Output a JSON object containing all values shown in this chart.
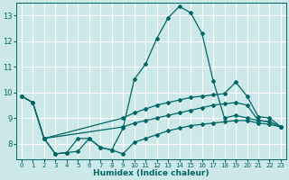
{
  "title": "",
  "xlabel": "Humidex (Indice chaleur)",
  "bg_color": "#cce8e8",
  "grid_color": "#ffffff",
  "line_color": "#006666",
  "xlim": [
    -0.5,
    23.5
  ],
  "ylim": [
    7.4,
    13.5
  ],
  "xticks": [
    0,
    1,
    2,
    3,
    4,
    5,
    6,
    7,
    8,
    9,
    10,
    11,
    12,
    13,
    14,
    15,
    16,
    17,
    18,
    19,
    20,
    21,
    22,
    23
  ],
  "yticks": [
    8,
    9,
    10,
    11,
    12,
    13
  ],
  "lines": [
    {
      "x": [
        0,
        1,
        2,
        3,
        4,
        5,
        6,
        7,
        8,
        9,
        10,
        11,
        12,
        13,
        14,
        15,
        16,
        17,
        18,
        19,
        20,
        21,
        22,
        23
      ],
      "y": [
        9.85,
        9.6,
        8.2,
        7.6,
        7.65,
        8.2,
        8.2,
        7.85,
        7.75,
        8.6,
        10.5,
        11.1,
        12.1,
        12.9,
        13.35,
        13.1,
        12.3,
        10.45,
        9.0,
        9.1,
        9.0,
        8.9,
        8.85,
        8.65
      ]
    },
    {
      "x": [
        0,
        1,
        2,
        9,
        10,
        11,
        12,
        13,
        14,
        15,
        16,
        17,
        18,
        19,
        20,
        21,
        22,
        23
      ],
      "y": [
        9.85,
        9.6,
        8.2,
        9.0,
        9.2,
        9.35,
        9.5,
        9.6,
        9.7,
        9.8,
        9.85,
        9.9,
        9.95,
        10.4,
        9.85,
        9.05,
        9.0,
        8.65
      ]
    },
    {
      "x": [
        0,
        1,
        2,
        9,
        10,
        11,
        12,
        13,
        14,
        15,
        16,
        17,
        18,
        19,
        20,
        21,
        22,
        23
      ],
      "y": [
        9.85,
        9.6,
        8.2,
        8.65,
        8.8,
        8.9,
        9.0,
        9.1,
        9.2,
        9.3,
        9.4,
        9.5,
        9.55,
        9.6,
        9.5,
        8.9,
        8.85,
        8.65
      ]
    },
    {
      "x": [
        2,
        3,
        4,
        5,
        6,
        7,
        8,
        9,
        10,
        11,
        12,
        13,
        14,
        15,
        16,
        17,
        18,
        19,
        20,
        21,
        22,
        23
      ],
      "y": [
        8.2,
        7.6,
        7.65,
        7.7,
        8.2,
        7.85,
        7.75,
        7.6,
        8.05,
        8.2,
        8.35,
        8.5,
        8.6,
        8.7,
        8.75,
        8.8,
        8.85,
        8.9,
        8.9,
        8.8,
        8.75,
        8.65
      ]
    }
  ]
}
